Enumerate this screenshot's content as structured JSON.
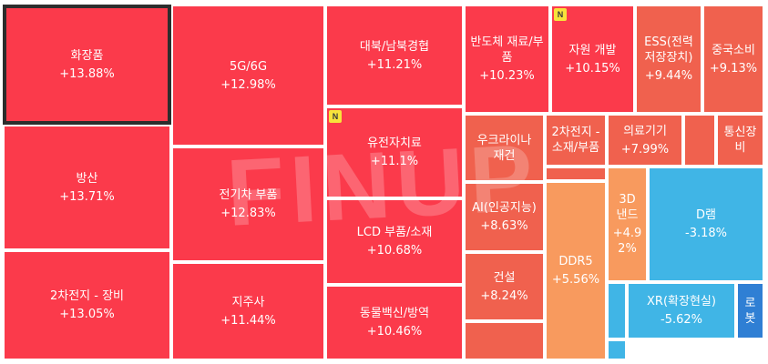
{
  "chart_data": {
    "type": "treemap",
    "colors": {
      "strong_up": "#fb3a4b",
      "up": "#f0614e",
      "mild_up": "#f89a5e",
      "down": "#40b5e6",
      "deep_down": "#2f7fd4",
      "selected_border": "#2d2d2d",
      "badge": "#f7e33b"
    },
    "watermark": "FINUP",
    "badge_text": "N",
    "items": [
      {
        "name": "화장품",
        "value": "+13.88%",
        "change": 13.88,
        "selected": true
      },
      {
        "name": "방산",
        "value": "+13.71%",
        "change": 13.71
      },
      {
        "name": "2차전지 - 장비",
        "value": "+13.05%",
        "change": 13.05
      },
      {
        "name": "5G/6G",
        "value": "+12.98%",
        "change": 12.98
      },
      {
        "name": "전기차 부품",
        "value": "+12.83%",
        "change": 12.83
      },
      {
        "name": "지주사",
        "value": "+11.44%",
        "change": 11.44
      },
      {
        "name": "대북/남북경협",
        "value": "+11.21%",
        "change": 11.21
      },
      {
        "name": "유전자치료",
        "value": "+11.1%",
        "change": 11.1,
        "badge": true
      },
      {
        "name": "LCD 부품/소재",
        "value": "+10.68%",
        "change": 10.68
      },
      {
        "name": "동물백신/방역",
        "value": "+10.46%",
        "change": 10.46
      },
      {
        "name": "반도체 재료/부\n품",
        "value": "+10.23%",
        "change": 10.23
      },
      {
        "name": "자원 개발",
        "value": "+10.15%",
        "change": 10.15,
        "badge": true
      },
      {
        "name": "ESS(전력\n저장장치)",
        "value": "+9.44%",
        "change": 9.44
      },
      {
        "name": "중국소비",
        "value": "+9.13%",
        "change": 9.13
      },
      {
        "name": "우크라이나\n재건",
        "value": "",
        "change": null
      },
      {
        "name": "2차전지 -\n소재/부품",
        "value": "",
        "change": null
      },
      {
        "name": "의료기기",
        "value": "+7.99%",
        "change": 7.99
      },
      {
        "name": "",
        "value": "",
        "change": null
      },
      {
        "name": "통신장\n비",
        "value": "",
        "change": null
      },
      {
        "name": "AI(인공지능)",
        "value": "+8.63%",
        "change": 8.63
      },
      {
        "name": "",
        "value": "",
        "change": null
      },
      {
        "name": "3D\n낸드",
        "value": "+4.9\n2%",
        "change": 4.92
      },
      {
        "name": "D램",
        "value": "-3.18%",
        "change": -3.18
      },
      {
        "name": "건설",
        "value": "+8.24%",
        "change": 8.24
      },
      {
        "name": "DDR5",
        "value": "+5.56%",
        "change": 5.56
      },
      {
        "name": "",
        "value": "",
        "change": null
      },
      {
        "name": "XR(확장현실)",
        "value": "-5.62%",
        "change": -5.62
      },
      {
        "name": "로\n봇",
        "value": "",
        "change": null
      },
      {
        "name": "",
        "value": "",
        "change": null
      },
      {
        "name": "",
        "value": "",
        "change": null
      }
    ]
  }
}
